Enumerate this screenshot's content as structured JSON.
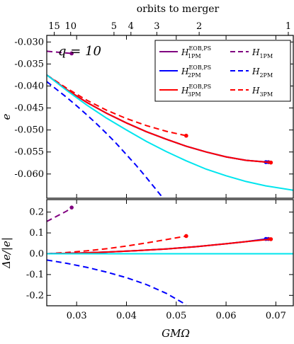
{
  "annotation": "q = 10",
  "top_axis": {
    "label": "orbits to merger",
    "ticks": [
      {
        "label": "15",
        "x": 0.0255
      },
      {
        "label": "10",
        "x": 0.0288
      },
      {
        "label": "5",
        "x": 0.0375
      },
      {
        "label": "4",
        "x": 0.0409
      },
      {
        "label": "3",
        "x": 0.0461
      },
      {
        "label": "2",
        "x": 0.0546
      },
      {
        "label": "1",
        "x": 0.0725
      }
    ]
  },
  "chart_data": [
    {
      "type": "line",
      "panel": "top",
      "xlabel": "",
      "ylabel": "e",
      "xlim": [
        0.024,
        0.0735
      ],
      "ylim": [
        -0.0655,
        -0.0285
      ],
      "yticks": [
        -0.03,
        -0.035,
        -0.04,
        -0.045,
        -0.05,
        -0.055,
        -0.06
      ],
      "ytick_labels": [
        "-0.030",
        "-0.035",
        "-0.040",
        "-0.045",
        "-0.050",
        "-0.055",
        "-0.060"
      ],
      "series": [
        {
          "name": "H1PM",
          "color": "#800080",
          "dash": true,
          "x": [
            0.024,
            0.026,
            0.028,
            0.029
          ],
          "y": [
            -0.0321,
            -0.0323,
            -0.0325,
            -0.0326
          ],
          "end_dot": true
        },
        {
          "name": "H2PM",
          "color": "#0000ff",
          "dash": true,
          "x": [
            0.024,
            0.026,
            0.028,
            0.03,
            0.032,
            0.034,
            0.036,
            0.038,
            0.04,
            0.042,
            0.044,
            0.046,
            0.047
          ],
          "y": [
            -0.039,
            -0.0408,
            -0.0426,
            -0.0445,
            -0.0465,
            -0.0486,
            -0.0508,
            -0.0531,
            -0.0556,
            -0.0581,
            -0.0608,
            -0.0636,
            -0.065
          ]
        },
        {
          "name": "H3PM",
          "color": "#ff0000",
          "dash": true,
          "x": [
            0.024,
            0.028,
            0.032,
            0.036,
            0.04,
            0.044,
            0.048,
            0.052
          ],
          "y": [
            -0.0375,
            -0.0405,
            -0.0432,
            -0.0455,
            -0.0474,
            -0.049,
            -0.0503,
            -0.0513
          ],
          "end_dot": true
        },
        {
          "name": "H1PM EOB,PS",
          "color": "#800080",
          "dash": false,
          "x": [
            0.024,
            0.028,
            0.032,
            0.036,
            0.04,
            0.044,
            0.048,
            0.052,
            0.056,
            0.06,
            0.064,
            0.0685
          ],
          "y": [
            -0.0375,
            -0.0408,
            -0.0437,
            -0.0462,
            -0.0484,
            -0.0504,
            -0.0521,
            -0.0537,
            -0.055,
            -0.0561,
            -0.0569,
            -0.0573
          ],
          "end_dot": true
        },
        {
          "name": "H2PM EOB,PS",
          "color": "#0000ff",
          "dash": false,
          "x": [
            0.024,
            0.028,
            0.032,
            0.036,
            0.04,
            0.044,
            0.048,
            0.052,
            0.056,
            0.06,
            0.064,
            0.068
          ],
          "y": [
            -0.0375,
            -0.0408,
            -0.0437,
            -0.0462,
            -0.0484,
            -0.0504,
            -0.0521,
            -0.0537,
            -0.055,
            -0.0561,
            -0.0569,
            -0.0573
          ],
          "end_dot": true
        },
        {
          "name": "H3PM EOB,PS",
          "color": "#ff0000",
          "dash": false,
          "x": [
            0.024,
            0.028,
            0.032,
            0.036,
            0.04,
            0.044,
            0.048,
            0.052,
            0.056,
            0.06,
            0.064,
            0.069
          ],
          "y": [
            -0.0375,
            -0.0408,
            -0.0437,
            -0.0462,
            -0.0484,
            -0.0504,
            -0.0521,
            -0.0537,
            -0.055,
            -0.0561,
            -0.0569,
            -0.0574
          ],
          "end_dot": true
        },
        {
          "name": "",
          "color": "#00e5ee",
          "dash": false,
          "x": [
            0.024,
            0.028,
            0.032,
            0.036,
            0.04,
            0.044,
            0.048,
            0.052,
            0.056,
            0.06,
            0.064,
            0.068,
            0.0735
          ],
          "y": [
            -0.0375,
            -0.041,
            -0.0443,
            -0.0473,
            -0.05,
            -0.0526,
            -0.0549,
            -0.057,
            -0.0589,
            -0.0604,
            -0.0617,
            -0.0627,
            -0.0637
          ]
        }
      ],
      "legend": {
        "placement": "top-right",
        "entries": [
          {
            "name": "H",
            "sub": "1PM",
            "sup": "EOB,PS",
            "color": "#800080",
            "dash": false
          },
          {
            "name": "H",
            "sub": "1PM",
            "sup": "",
            "color": "#800080",
            "dash": true
          },
          {
            "name": "H",
            "sub": "2PM",
            "sup": "EOB,PS",
            "color": "#0000ff",
            "dash": false
          },
          {
            "name": "H",
            "sub": "2PM",
            "sup": "",
            "color": "#0000ff",
            "dash": true
          },
          {
            "name": "H",
            "sub": "3PM",
            "sup": "EOB,PS",
            "color": "#ff0000",
            "dash": false
          },
          {
            "name": "H",
            "sub": "3PM",
            "sup": "",
            "color": "#ff0000",
            "dash": true
          }
        ]
      }
    },
    {
      "type": "line",
      "panel": "bottom",
      "xlabel": "GMΩ",
      "ylabel": "Δe/|e|",
      "xlim": [
        0.024,
        0.0735
      ],
      "ylim": [
        -0.25,
        0.26
      ],
      "xticks": [
        0.03,
        0.04,
        0.05,
        0.06,
        0.07
      ],
      "xtick_labels": [
        "0.03",
        "0.04",
        "0.05",
        "0.06",
        "0.07"
      ],
      "yticks": [
        -0.2,
        -0.1,
        0.0,
        0.1,
        0.2
      ],
      "ytick_labels": [
        "-0.2",
        "-0.1",
        "0.0",
        "0.1",
        "0.2"
      ],
      "series": [
        {
          "name": "H1PM",
          "color": "#800080",
          "dash": true,
          "x": [
            0.024,
            0.026,
            0.028,
            0.029
          ],
          "y": [
            0.155,
            0.18,
            0.205,
            0.222
          ],
          "end_dot": true
        },
        {
          "name": "H2PM",
          "color": "#0000ff",
          "dash": true,
          "x": [
            0.024,
            0.028,
            0.032,
            0.036,
            0.04,
            0.044,
            0.048,
            0.052
          ],
          "y": [
            -0.03,
            -0.046,
            -0.065,
            -0.088,
            -0.115,
            -0.148,
            -0.19,
            -0.245
          ]
        },
        {
          "name": "H3PM",
          "color": "#ff0000",
          "dash": true,
          "x": [
            0.024,
            0.028,
            0.032,
            0.036,
            0.04,
            0.044,
            0.048,
            0.052
          ],
          "y": [
            0.0,
            0.006,
            0.014,
            0.024,
            0.037,
            0.052,
            0.068,
            0.085
          ],
          "end_dot": true
        },
        {
          "name": "H1PM EOB,PS",
          "color": "#800080",
          "dash": false,
          "x": [
            0.024,
            0.03,
            0.036,
            0.042,
            0.048,
            0.054,
            0.06,
            0.064,
            0.0685
          ],
          "y": [
            0.0,
            0.003,
            0.008,
            0.015,
            0.023,
            0.034,
            0.048,
            0.058,
            0.071
          ],
          "end_dot": true
        },
        {
          "name": "H2PM EOB,PS",
          "color": "#0000ff",
          "dash": false,
          "x": [
            0.024,
            0.03,
            0.036,
            0.042,
            0.048,
            0.054,
            0.06,
            0.064,
            0.068
          ],
          "y": [
            0.0,
            0.003,
            0.008,
            0.015,
            0.023,
            0.034,
            0.048,
            0.058,
            0.071
          ],
          "end_dot": true
        },
        {
          "name": "H3PM EOB,PS",
          "color": "#ff0000",
          "dash": false,
          "x": [
            0.024,
            0.03,
            0.036,
            0.042,
            0.048,
            0.054,
            0.06,
            0.064,
            0.069
          ],
          "y": [
            0.0,
            0.003,
            0.008,
            0.015,
            0.023,
            0.034,
            0.048,
            0.058,
            0.07
          ],
          "end_dot": true
        },
        {
          "name": "",
          "color": "#00e5ee",
          "dash": false,
          "x": [
            0.024,
            0.0735
          ],
          "y": [
            0.0,
            0.0
          ]
        }
      ]
    }
  ]
}
